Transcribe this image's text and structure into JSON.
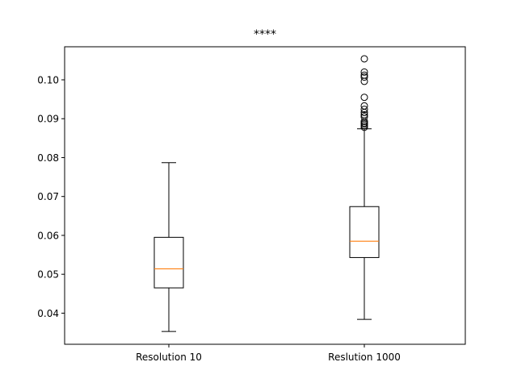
{
  "chart_data": {
    "type": "box",
    "title": "****",
    "xlabel": "",
    "ylabel": "",
    "ylim": [
      0.032,
      0.1085
    ],
    "yticks": [
      0.04,
      0.05,
      0.06,
      0.07,
      0.08,
      0.09,
      0.1
    ],
    "ytick_labels": [
      "0.04",
      "0.05",
      "0.06",
      "0.07",
      "0.08",
      "0.09",
      "0.10"
    ],
    "grid": false,
    "boxes": [
      {
        "label": "Resolution 10",
        "whisker_low": 0.0353,
        "q1": 0.0465,
        "median": 0.0514,
        "q3": 0.0595,
        "whisker_high": 0.0787,
        "outliers": []
      },
      {
        "label": "Reslution 1000",
        "whisker_low": 0.0384,
        "q1": 0.0543,
        "median": 0.0585,
        "q3": 0.0674,
        "whisker_high": 0.0874,
        "outliers": [
          0.0878,
          0.0882,
          0.0886,
          0.0889,
          0.0893,
          0.0905,
          0.091,
          0.0916,
          0.0924,
          0.0933,
          0.0955,
          0.0996,
          0.1007,
          0.1012,
          0.102,
          0.1054
        ]
      }
    ],
    "colors": {
      "box": "#000000",
      "median": "#ff7f0e",
      "outlier": "#000000"
    }
  }
}
